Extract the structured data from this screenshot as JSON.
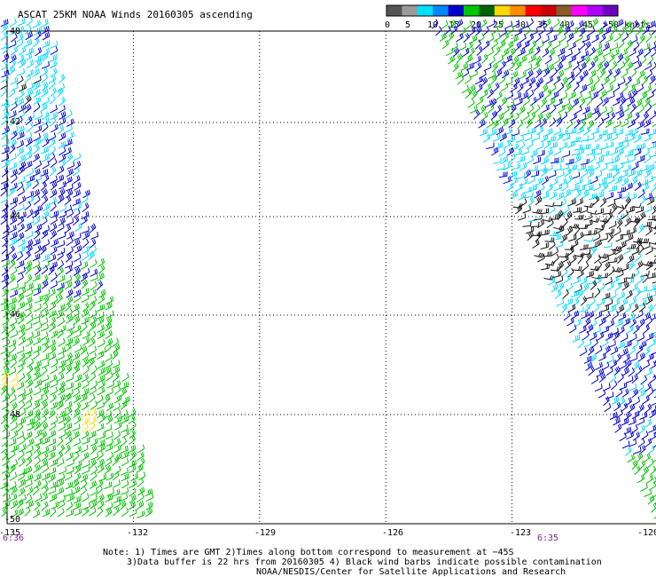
{
  "title": "ASCAT 25KM NOAA Winds 20160305 ascending",
  "colors": {
    "background": "#ffffff",
    "grid": "#000000",
    "frame": "#000000",
    "time_label": "#7a2a8a"
  },
  "legend": {
    "labels": [
      "0",
      "5",
      "10",
      "15",
      "20",
      "25",
      "30",
      "35",
      "40",
      "45",
      ">50 knots"
    ],
    "bins": [
      "#555555",
      "#9a9a9a",
      "#00e0ff",
      "#0088ff",
      "#0000cc",
      "#00c800",
      "#006400",
      "#ffd800",
      "#ff8c00",
      "#ff0000",
      "#cc0000",
      "#8b5a2b",
      "#ff00ff",
      "#b000ff",
      "#7000c0"
    ]
  },
  "map": {
    "lon_range": [
      -135,
      -120
    ],
    "lat_range": [
      -50,
      -40
    ],
    "lon_ticks": [
      "-135",
      "-132",
      "-129",
      "-126",
      "-123",
      "-120"
    ],
    "lat_ticks": [
      "-40",
      "-42",
      "-44",
      "-46",
      "-48",
      "-50"
    ],
    "grid_lons": [
      -132,
      -129,
      -126,
      -123
    ],
    "grid_lats": [
      -42,
      -44,
      -46,
      -48
    ],
    "time_labels": [
      "6:36",
      "6:35"
    ]
  },
  "swaths": [
    {
      "name": "west-swath",
      "color_bands": [
        "cyan",
        "blue",
        "green",
        "yellow",
        "black"
      ]
    },
    {
      "name": "east-swath",
      "color_bands": [
        "blue",
        "green",
        "cyan",
        "black"
      ]
    }
  ],
  "notes": [
    "Note: 1) Times are GMT 2)Times along bottom correspond to measurement at −45S",
    "3)Data buffer is 22 hrs from 20160305 4) Black wind barbs indicate possible contamination",
    "NOAA/NESDIS/Center for Satellite Applications and Research"
  ]
}
